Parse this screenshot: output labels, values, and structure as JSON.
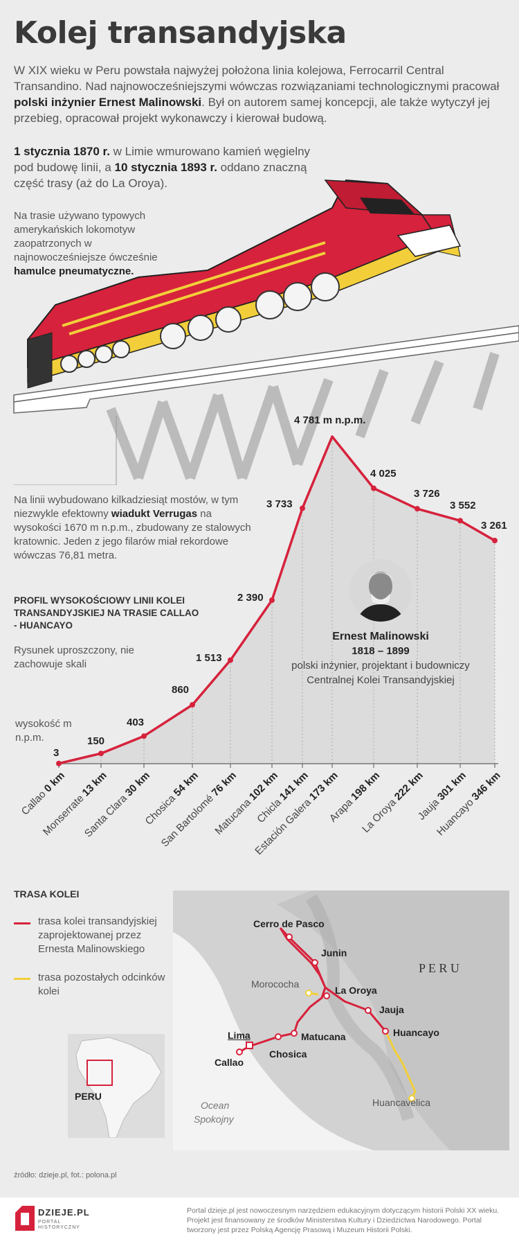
{
  "title": "Kolej transandyjska",
  "intro": {
    "t1": "W XIX wieku w Peru powstała najwyżej położona linia kolejowa, Ferrocarril Central Transandino. Nad najnowocześniejszymi wówczas rozwiązaniami technologicznymi pracował ",
    "b1": "polski inżynier Ernest Malinowski",
    "t2": ". Był on autorem samej koncepcji, ale także wytyczył jej przebieg, opracował projekt wykonawczy i kierował budową."
  },
  "para2": {
    "b1": "1 stycznia 1870 r.",
    "t1": " w Limie wmurowano kamień węgielny pod budowę linii, a ",
    "b2": "10 stycznia 1893 r.",
    "t2": " oddano znaczną część trasy (aż do La Oroya)."
  },
  "para3": {
    "t1": "Na trasie używano typowych amerykańskich lokomotyw zaopatrzonych w najnowocześniejsze ówcześnie ",
    "b1": "hamulce pneumatyczne."
  },
  "para4": {
    "t1": "Na linii wybudowano kilkadziesiąt mostów, w tym niezwykle efektowny ",
    "b1": "wiadukt Verrugas",
    "t2": " na wysokości 1670 m n.p.m., zbudowany ze stalowych kratownic. Jeden z jego filarów miał rekordowe wówczas 76,81 metra."
  },
  "profile": {
    "title": "PROFIL WYSOKOŚCIOWY LINII KOLEI TRANSANDYJSKIEJ NA TRASIE CALLAO - HUANCAYO",
    "note": "Rysunek uproszczony, nie zachowuje skali",
    "ylabel": "wysokość m n.p.m.",
    "peak_label": "4 781 m n.p.m."
  },
  "portrait": {
    "name": "Ernest Malinowski",
    "years": "1818 – 1899",
    "desc": "polski inżynier, projektant i budowniczy Centralnej Kolei Transandyjskiej"
  },
  "chart_data": {
    "type": "line",
    "title": "PROFIL WYSOKOŚCIOWY LINII KOLEI TRANSANDYJSKIEJ NA TRASIE CALLAO - HUANCAYO",
    "ylabel": "wysokość m n.p.m.",
    "x_unit": "km",
    "points": [
      {
        "station": "Callao",
        "km": "0 km",
        "elevation": 3,
        "label": "3"
      },
      {
        "station": "Monserrate",
        "km": "13 km",
        "elevation": 150,
        "label": "150"
      },
      {
        "station": "Santa Clara",
        "km": "30 km",
        "elevation": 403,
        "label": "403"
      },
      {
        "station": "Chosica",
        "km": "54 km",
        "elevation": 860,
        "label": "860"
      },
      {
        "station": "San Bartolomé",
        "km": "76 km",
        "elevation": 1513,
        "label": "1 513"
      },
      {
        "station": "Matucana",
        "km": "102 km",
        "elevation": 2390,
        "label": "2 390"
      },
      {
        "station": "Chicla",
        "km": "141 km",
        "elevation": 3733,
        "label": "3 733"
      },
      {
        "station": "Estación Galera",
        "km": "173 km",
        "elevation": 4781,
        "label": ""
      },
      {
        "station": "Arapa",
        "km": "198 km",
        "elevation": 4025,
        "label": "4 025"
      },
      {
        "station": "La Oroya",
        "km": "222 km",
        "elevation": 3726,
        "label": "3 726"
      },
      {
        "station": "Jauja",
        "km": "301 km",
        "elevation": 3552,
        "label": "3 552"
      },
      {
        "station": "Huancayo",
        "km": "346 km",
        "elevation": 3261,
        "label": "3 261"
      }
    ],
    "line_color": "#d6223c"
  },
  "trasa": {
    "title": "TRASA KOLEI",
    "legend_red": "trasa kolei transandyjskiej zaprojektowanej przez Ernesta Malinowskiego",
    "legend_yellow": "trasa pozostałych odcinków kolei",
    "red_color": "#d6223c",
    "yellow_color": "#f2cf3a"
  },
  "map": {
    "country": "P E R U",
    "ocean": "Ocean Spokojny",
    "inset_label": "PERU",
    "places": {
      "cerro": "Cerro de Pasco",
      "junin": "Junin",
      "morococha": "Morococha",
      "oroya": "La Oroya",
      "jauja": "Jauja",
      "huancayo": "Huancayo",
      "huancavelica": "Huancavelica",
      "lima": "Lima",
      "callao": "Callao",
      "chosica": "Chosica",
      "matucana": "Matucana"
    }
  },
  "source": "źródło: dzieje.pl, fot.: polona.pl",
  "footer": {
    "logo": "DZIEJE.PL",
    "logo_sub": "PORTAL HISTORYCZNY",
    "text": "Portal dzieje.pl jest nowoczesnym narzędziem edukacyjnym dotyczącym historii Polski XX wieku. Projekt jest finansowany ze środków Ministerstwa Kultury i Dziedzictwa Narodowego. Portal tworzony jest przez Polską Agencję Prasową i Muzeum Historii Polski."
  }
}
